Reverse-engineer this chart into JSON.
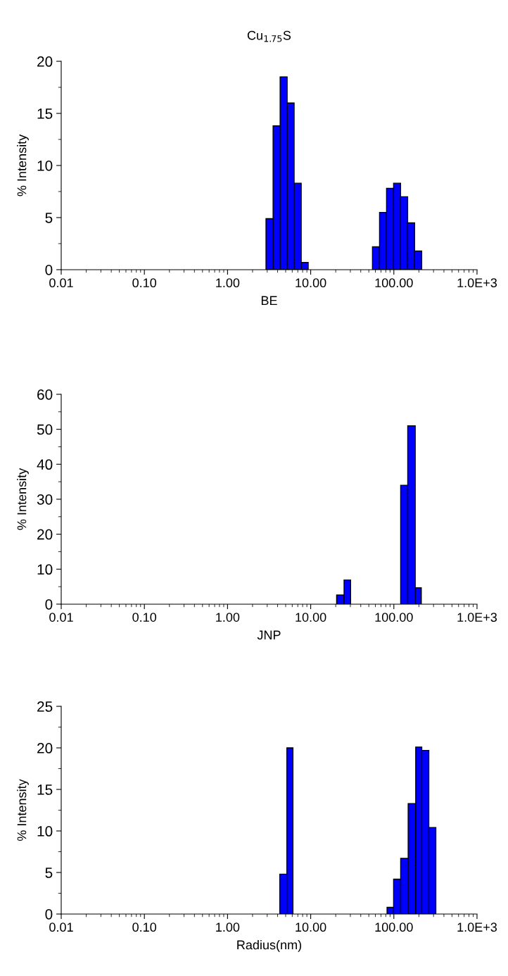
{
  "chart_data": [
    {
      "type": "histogram",
      "title": "Cu$_{1.75}$S",
      "xlabel": "BE",
      "ylabel": "% Intensity",
      "log": "x",
      "color": "#0000ff",
      "grid": false,
      "bins": [
        2.9,
        3.53,
        4.29,
        5.21,
        6.32,
        7.69,
        9.33,
        55.3,
        67.3,
        81.7,
        99.3,
        120.5,
        146.6,
        177.8,
        216.3
      ],
      "values": [
        4.9,
        13.8,
        18.5,
        16.0,
        8.3,
        0.7,
        0,
        2.2,
        5.5,
        7.8,
        8.3,
        7.0,
        4.5,
        1.8
      ],
      "xlim": [
        0.01,
        1000
      ],
      "xticks": [
        {
          "value": 0.01,
          "label": "0.01"
        },
        {
          "value": 0.1,
          "label": "0.10"
        },
        {
          "value": 1,
          "label": "1.00"
        },
        {
          "value": 10,
          "label": "10.00"
        },
        {
          "value": 100,
          "label": "100.00"
        },
        {
          "value": 1000,
          "label": "1.0E+3"
        }
      ],
      "ylim": [
        0,
        20
      ],
      "yticks": [
        0,
        5,
        10,
        15,
        20
      ]
    },
    {
      "type": "histogram",
      "xlabel": "JNP",
      "ylabel": "% Intensity",
      "log": "x",
      "color": "#0000ff",
      "grid": false,
      "bins": [
        20.5,
        25.2,
        30.2,
        120.8,
        146.9,
        180.7,
        213.8
      ],
      "values": [
        2.6,
        6.9,
        0,
        34.0,
        51.0,
        4.7
      ],
      "xlim": [
        0.01,
        1000
      ],
      "xticks": [
        {
          "value": 0.01,
          "label": "0.01"
        },
        {
          "value": 0.1,
          "label": "0.10"
        },
        {
          "value": 1,
          "label": "1.00"
        },
        {
          "value": 10,
          "label": "10.00"
        },
        {
          "value": 100,
          "label": "100.00"
        },
        {
          "value": 1000,
          "label": "1.0E+3"
        }
      ],
      "ylim": [
        0,
        60
      ],
      "yticks": [
        0,
        10,
        20,
        30,
        40,
        50,
        60
      ]
    },
    {
      "type": "histogram",
      "xlabel": "Radius(nm)",
      "ylabel": "% Intensity",
      "log": "x",
      "color": "#0000ff",
      "grid": false,
      "bins": [
        4.25,
        5.17,
        6.12,
        82.8,
        99.3,
        120.8,
        148.6,
        183.2,
        216.8,
        263.5,
        320.0
      ],
      "values": [
        4.8,
        20.0,
        0,
        0.8,
        4.2,
        6.7,
        13.3,
        20.1,
        19.7,
        10.4
      ],
      "xlim": [
        0.01,
        1000
      ],
      "xticks": [
        {
          "value": 0.01,
          "label": "0.01"
        },
        {
          "value": 0.1,
          "label": "0.10"
        },
        {
          "value": 1,
          "label": "1.00"
        },
        {
          "value": 10,
          "label": "10.00"
        },
        {
          "value": 100,
          "label": "100.00"
        },
        {
          "value": 1000,
          "label": "1.0E+3"
        }
      ],
      "ylim": [
        0,
        25
      ],
      "yticks": [
        0,
        5,
        10,
        15,
        20,
        25
      ]
    }
  ]
}
